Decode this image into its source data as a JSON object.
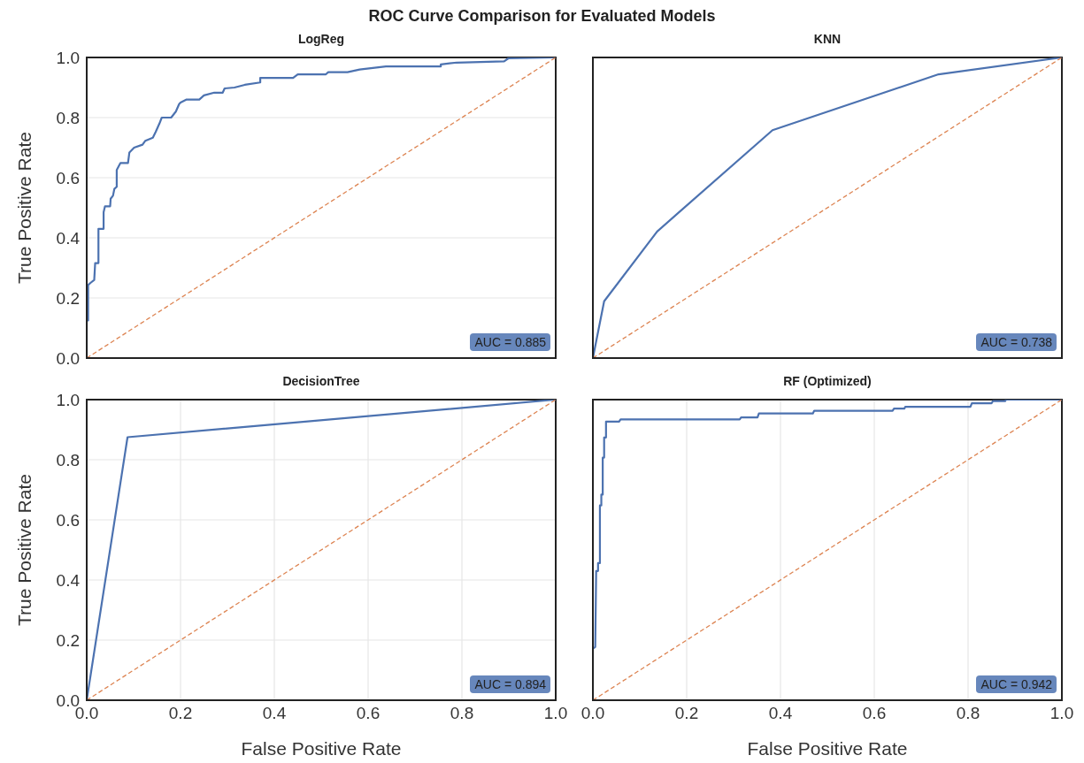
{
  "chart_data": [
    {
      "type": "line",
      "title": "ROC Curve Comparison for Evaluated Models",
      "subtitle": "LogReg",
      "ylabel": "True Positive Rate",
      "annotations": [
        "AUC = 0.885"
      ],
      "xlim": [
        0,
        1
      ],
      "ylim": [
        0,
        1
      ],
      "xticks": [
        {
          "value": 0,
          "label": null
        },
        {
          "value": 0.2,
          "label": null
        },
        {
          "value": 0.4,
          "label": null
        },
        {
          "value": 0.6,
          "label": null
        },
        {
          "value": 0.8,
          "label": null
        },
        {
          "value": 1,
          "label": null
        }
      ],
      "yticks": [
        {
          "value": 0,
          "label": "0.0"
        },
        {
          "value": 0.2,
          "label": "0.2"
        },
        {
          "value": 0.4,
          "label": "0.4"
        },
        {
          "value": 0.6,
          "label": "0.6"
        },
        {
          "value": 0.8,
          "label": "0.8"
        },
        {
          "value": 1,
          "label": "1.0"
        }
      ],
      "grid": true,
      "tick_labels": "y",
      "series": [
        {
          "color": "#4c72b0",
          "x": [
            0,
            0,
            0.003,
            0.003,
            0.008,
            0.016,
            0.018,
            0.025,
            0.025,
            0.036,
            0.036,
            0.039,
            0.05,
            0.051,
            0.056,
            0.059,
            0.064,
            0.064,
            0.072,
            0.088,
            0.091,
            0.101,
            0.119,
            0.125,
            0.141,
            0.147,
            0.155,
            0.16,
            0.18,
            0.19,
            0.197,
            0.2,
            0.213,
            0.24,
            0.25,
            0.272,
            0.29,
            0.294,
            0.315,
            0.337,
            0.37,
            0.37,
            0.44,
            0.45,
            0.51,
            0.515,
            0.556,
            0.582,
            0.638,
            0.755,
            0.755,
            0.789,
            0.89,
            0.899,
            1
          ],
          "values": [
            0,
            0.125,
            0.125,
            0.243,
            0.25,
            0.26,
            0.316,
            0.316,
            0.43,
            0.43,
            0.485,
            0.505,
            0.505,
            0.53,
            0.54,
            0.563,
            0.57,
            0.626,
            0.649,
            0.649,
            0.684,
            0.7,
            0.71,
            0.723,
            0.733,
            0.752,
            0.78,
            0.8,
            0.8,
            0.82,
            0.845,
            0.85,
            0.86,
            0.86,
            0.874,
            0.883,
            0.883,
            0.897,
            0.9,
            0.909,
            0.917,
            0.932,
            0.932,
            0.944,
            0.944,
            0.951,
            0.951,
            0.96,
            0.97,
            0.97,
            0.977,
            0.983,
            0.987,
            0.997,
            1
          ]
        },
        {
          "color": "#dd8452",
          "line_style": "dashed",
          "x": [
            0,
            1
          ],
          "values": [
            0,
            1
          ]
        }
      ]
    },
    {
      "type": "line",
      "title": "KNN",
      "annotations": [
        "AUC = 0.738"
      ],
      "xlim": [
        0,
        1
      ],
      "ylim": [
        0,
        1
      ],
      "xticks": [
        {
          "value": 0,
          "label": null
        },
        {
          "value": 0.2,
          "label": null
        },
        {
          "value": 0.4,
          "label": null
        },
        {
          "value": 0.6,
          "label": null
        },
        {
          "value": 0.8,
          "label": null
        },
        {
          "value": 1,
          "label": null
        }
      ],
      "yticks": [
        {
          "value": 0,
          "label": null
        },
        {
          "value": 0.2,
          "label": null
        },
        {
          "value": 0.4,
          "label": null
        },
        {
          "value": 0.6,
          "label": null
        },
        {
          "value": 0.8,
          "label": null
        },
        {
          "value": 1,
          "label": null
        }
      ],
      "grid": true,
      "tick_labels": false,
      "series": [
        {
          "color": "#4c72b0",
          "x": [
            0,
            0.024,
            0.137,
            0.383,
            0.737,
            1
          ],
          "values": [
            0,
            0.189,
            0.421,
            0.758,
            0.944,
            1
          ]
        },
        {
          "color": "#dd8452",
          "line_style": "dashed",
          "x": [
            0,
            1
          ],
          "values": [
            0,
            1
          ]
        }
      ]
    },
    {
      "type": "line",
      "title": "DecisionTree",
      "xlabel": "False Positive Rate",
      "ylabel": "True Positive Rate",
      "annotations": [
        "AUC = 0.894"
      ],
      "xlim": [
        0,
        1
      ],
      "ylim": [
        0,
        1
      ],
      "xticks": [
        {
          "value": 0,
          "label": "0.0"
        },
        {
          "value": 0.2,
          "label": "0.2"
        },
        {
          "value": 0.4,
          "label": "0.4"
        },
        {
          "value": 0.6,
          "label": "0.6"
        },
        {
          "value": 0.8,
          "label": "0.8"
        },
        {
          "value": 1,
          "label": "1.0"
        }
      ],
      "yticks": [
        {
          "value": 0,
          "label": "0.0"
        },
        {
          "value": 0.2,
          "label": "0.2"
        },
        {
          "value": 0.4,
          "label": "0.4"
        },
        {
          "value": 0.6,
          "label": "0.6"
        },
        {
          "value": 0.8,
          "label": "0.8"
        },
        {
          "value": 1,
          "label": "1.0"
        }
      ],
      "grid": true,
      "series": [
        {
          "color": "#4c72b0",
          "x": [
            0,
            0.087,
            1
          ],
          "values": [
            0,
            0.875,
            1
          ]
        },
        {
          "color": "#dd8452",
          "line_style": "dashed",
          "x": [
            0,
            1
          ],
          "values": [
            0,
            1
          ]
        }
      ]
    },
    {
      "type": "line",
      "title": "RF (Optimized)",
      "xlabel": "False Positive Rate",
      "annotations": [
        "AUC = 0.942"
      ],
      "xlim": [
        0,
        1
      ],
      "ylim": [
        0,
        1
      ],
      "xticks": [
        {
          "value": 0,
          "label": "0.0"
        },
        {
          "value": 0.2,
          "label": "0.2"
        },
        {
          "value": 0.4,
          "label": "0.4"
        },
        {
          "value": 0.6,
          "label": "0.6"
        },
        {
          "value": 0.8,
          "label": "0.8"
        },
        {
          "value": 1,
          "label": "1.0"
        }
      ],
      "yticks": [
        {
          "value": 0,
          "label": null
        },
        {
          "value": 0.2,
          "label": null
        },
        {
          "value": 0.4,
          "label": null
        },
        {
          "value": 0.6,
          "label": null
        },
        {
          "value": 0.8,
          "label": null
        },
        {
          "value": 1,
          "label": null
        }
      ],
      "grid": true,
      "tick_labels": "x",
      "series": [
        {
          "color": "#4c72b0",
          "x": [
            0,
            0,
            0.005,
            0.007,
            0.011,
            0.011,
            0.015,
            0.015,
            0.018,
            0.018,
            0.021,
            0.021,
            0.024,
            0.024,
            0.028,
            0.028,
            0.056,
            0.059,
            0.313,
            0.316,
            0.351,
            0.354,
            0.469,
            0.472,
            0.639,
            0.642,
            0.664,
            0.666,
            0.805,
            0.808,
            0.85,
            0.853,
            0.879,
            0.881,
            1
          ],
          "values": [
            0,
            0.172,
            0.177,
            0.43,
            0.43,
            0.456,
            0.456,
            0.648,
            0.648,
            0.684,
            0.684,
            0.807,
            0.807,
            0.874,
            0.874,
            0.927,
            0.927,
            0.934,
            0.934,
            0.941,
            0.941,
            0.954,
            0.954,
            0.963,
            0.963,
            0.97,
            0.97,
            0.976,
            0.976,
            0.988,
            0.988,
            0.995,
            0.995,
            1,
            1
          ]
        },
        {
          "color": "#dd8452",
          "line_style": "dashed",
          "x": [
            0,
            1
          ],
          "values": [
            0,
            1
          ]
        }
      ]
    }
  ]
}
